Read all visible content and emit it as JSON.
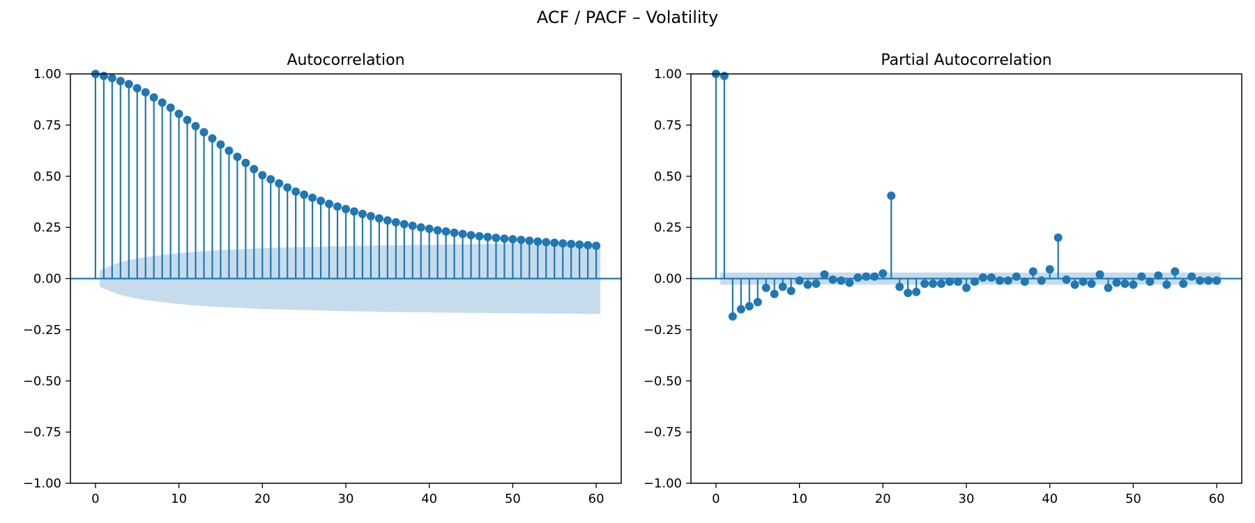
{
  "suptitle": "ACF / PACF – Volatility",
  "chart_data": [
    {
      "type": "stem",
      "title": "Autocorrelation",
      "xlabel": "",
      "ylabel": "",
      "xlim": [
        -3,
        63
      ],
      "ylim": [
        -1.0,
        1.0
      ],
      "xticks": [
        0,
        10,
        20,
        30,
        40,
        50,
        60
      ],
      "yticks": [
        -1.0,
        -0.75,
        -0.5,
        -0.25,
        0.0,
        0.25,
        0.5,
        0.75,
        1.0
      ],
      "ytick_labels": [
        "−1.00",
        "−0.75",
        "−0.50",
        "−0.25",
        "0.00",
        "0.25",
        "0.50",
        "0.75",
        "1.00"
      ],
      "lags": [
        0,
        1,
        2,
        3,
        4,
        5,
        6,
        7,
        8,
        9,
        10,
        11,
        12,
        13,
        14,
        15,
        16,
        17,
        18,
        19,
        20,
        21,
        22,
        23,
        24,
        25,
        26,
        27,
        28,
        29,
        30,
        31,
        32,
        33,
        34,
        35,
        36,
        37,
        38,
        39,
        40,
        41,
        42,
        43,
        44,
        45,
        46,
        47,
        48,
        49,
        50,
        51,
        52,
        53,
        54,
        55,
        56,
        57,
        58,
        59,
        60
      ],
      "values": [
        1.0,
        0.99,
        0.98,
        0.965,
        0.95,
        0.93,
        0.91,
        0.885,
        0.86,
        0.835,
        0.805,
        0.775,
        0.745,
        0.715,
        0.685,
        0.655,
        0.625,
        0.595,
        0.565,
        0.535,
        0.505,
        0.485,
        0.465,
        0.445,
        0.425,
        0.41,
        0.395,
        0.38,
        0.365,
        0.352,
        0.34,
        0.328,
        0.316,
        0.305,
        0.294,
        0.284,
        0.275,
        0.266,
        0.258,
        0.25,
        0.243,
        0.236,
        0.23,
        0.224,
        0.218,
        0.212,
        0.207,
        0.203,
        0.199,
        0.195,
        0.192,
        0.189,
        0.185,
        0.181,
        0.178,
        0.175,
        0.172,
        0.169,
        0.166,
        0.163,
        0.16
      ],
      "confint_upper": [
        0.04,
        0.065,
        0.08,
        0.09,
        0.098,
        0.105,
        0.11,
        0.115,
        0.12,
        0.124,
        0.128,
        0.131,
        0.134,
        0.137,
        0.139,
        0.141,
        0.143,
        0.145,
        0.147,
        0.148,
        0.15,
        0.151,
        0.152,
        0.153,
        0.154,
        0.155,
        0.156,
        0.157,
        0.158,
        0.159,
        0.16,
        0.161,
        0.161,
        0.162,
        0.163,
        0.163,
        0.164,
        0.164,
        0.165,
        0.165,
        0.166,
        0.166,
        0.167,
        0.167,
        0.168,
        0.168,
        0.168,
        0.169,
        0.169,
        0.169,
        0.17,
        0.17,
        0.17,
        0.171,
        0.171,
        0.171,
        0.171,
        0.172,
        0.172,
        0.172
      ],
      "confint_lower": [
        -0.04,
        -0.065,
        -0.08,
        -0.09,
        -0.098,
        -0.105,
        -0.11,
        -0.115,
        -0.12,
        -0.124,
        -0.128,
        -0.131,
        -0.134,
        -0.137,
        -0.139,
        -0.141,
        -0.143,
        -0.145,
        -0.147,
        -0.148,
        -0.15,
        -0.151,
        -0.152,
        -0.153,
        -0.154,
        -0.155,
        -0.156,
        -0.157,
        -0.158,
        -0.159,
        -0.16,
        -0.161,
        -0.161,
        -0.162,
        -0.163,
        -0.163,
        -0.164,
        -0.164,
        -0.165,
        -0.165,
        -0.166,
        -0.166,
        -0.167,
        -0.167,
        -0.168,
        -0.168,
        -0.168,
        -0.169,
        -0.169,
        -0.169,
        -0.17,
        -0.17,
        -0.17,
        -0.171,
        -0.171,
        -0.171,
        -0.171,
        -0.172,
        -0.172,
        -0.172
      ],
      "grid": false,
      "color": "#1f77b4",
      "band_color": "#c6dcec"
    },
    {
      "type": "stem",
      "title": "Partial Autocorrelation",
      "xlabel": "",
      "ylabel": "",
      "xlim": [
        -3,
        63
      ],
      "ylim": [
        -1.0,
        1.0
      ],
      "xticks": [
        0,
        10,
        20,
        30,
        40,
        50,
        60
      ],
      "yticks": [
        -1.0,
        -0.75,
        -0.5,
        -0.25,
        0.0,
        0.25,
        0.5,
        0.75,
        1.0
      ],
      "ytick_labels": [
        "−1.00",
        "−0.75",
        "−0.50",
        "−0.25",
        "0.00",
        "0.25",
        "0.50",
        "0.75",
        "1.00"
      ],
      "lags": [
        0,
        1,
        2,
        3,
        4,
        5,
        6,
        7,
        8,
        9,
        10,
        11,
        12,
        13,
        14,
        15,
        16,
        17,
        18,
        19,
        20,
        21,
        22,
        23,
        24,
        25,
        26,
        27,
        28,
        29,
        30,
        31,
        32,
        33,
        34,
        35,
        36,
        37,
        38,
        39,
        40,
        41,
        42,
        43,
        44,
        45,
        46,
        47,
        48,
        49,
        50,
        51,
        52,
        53,
        54,
        55,
        56,
        57,
        58,
        59,
        60
      ],
      "values": [
        1.0,
        0.99,
        -0.185,
        -0.15,
        -0.135,
        -0.115,
        -0.045,
        -0.075,
        -0.04,
        -0.06,
        -0.01,
        -0.03,
        -0.025,
        0.02,
        -0.005,
        -0.01,
        -0.02,
        0.005,
        0.01,
        0.01,
        0.025,
        0.405,
        -0.04,
        -0.07,
        -0.065,
        -0.025,
        -0.025,
        -0.025,
        -0.015,
        -0.015,
        -0.045,
        -0.015,
        0.005,
        0.005,
        -0.01,
        -0.01,
        0.01,
        -0.015,
        0.035,
        -0.01,
        0.045,
        0.2,
        -0.005,
        -0.03,
        -0.015,
        -0.025,
        0.02,
        -0.045,
        -0.02,
        -0.025,
        -0.03,
        0.01,
        -0.015,
        0.015,
        -0.03,
        0.035,
        -0.025,
        0.01,
        -0.01,
        -0.01,
        -0.01
      ],
      "confint_upper": [
        0.03,
        0.03,
        0.03,
        0.03,
        0.03,
        0.03,
        0.03,
        0.03,
        0.03,
        0.03,
        0.03,
        0.03,
        0.03,
        0.03,
        0.03,
        0.03,
        0.03,
        0.03,
        0.03,
        0.03,
        0.03,
        0.03,
        0.03,
        0.03,
        0.03,
        0.03,
        0.03,
        0.03,
        0.03,
        0.03,
        0.03,
        0.03,
        0.03,
        0.03,
        0.03,
        0.03,
        0.03,
        0.03,
        0.03,
        0.03,
        0.03,
        0.03,
        0.03,
        0.03,
        0.03,
        0.03,
        0.03,
        0.03,
        0.03,
        0.03,
        0.03,
        0.03,
        0.03,
        0.03,
        0.03,
        0.03,
        0.03,
        0.03,
        0.03,
        0.03
      ],
      "confint_lower": [
        -0.03,
        -0.03,
        -0.03,
        -0.03,
        -0.03,
        -0.03,
        -0.03,
        -0.03,
        -0.03,
        -0.03,
        -0.03,
        -0.03,
        -0.03,
        -0.03,
        -0.03,
        -0.03,
        -0.03,
        -0.03,
        -0.03,
        -0.03,
        -0.03,
        -0.03,
        -0.03,
        -0.03,
        -0.03,
        -0.03,
        -0.03,
        -0.03,
        -0.03,
        -0.03,
        -0.03,
        -0.03,
        -0.03,
        -0.03,
        -0.03,
        -0.03,
        -0.03,
        -0.03,
        -0.03,
        -0.03,
        -0.03,
        -0.03,
        -0.03,
        -0.03,
        -0.03,
        -0.03,
        -0.03,
        -0.03,
        -0.03,
        -0.03,
        -0.03,
        -0.03,
        -0.03,
        -0.03,
        -0.03,
        -0.03,
        -0.03,
        -0.03,
        -0.03,
        -0.03
      ],
      "grid": false,
      "color": "#1f77b4",
      "band_color": "#c6dcec"
    }
  ]
}
